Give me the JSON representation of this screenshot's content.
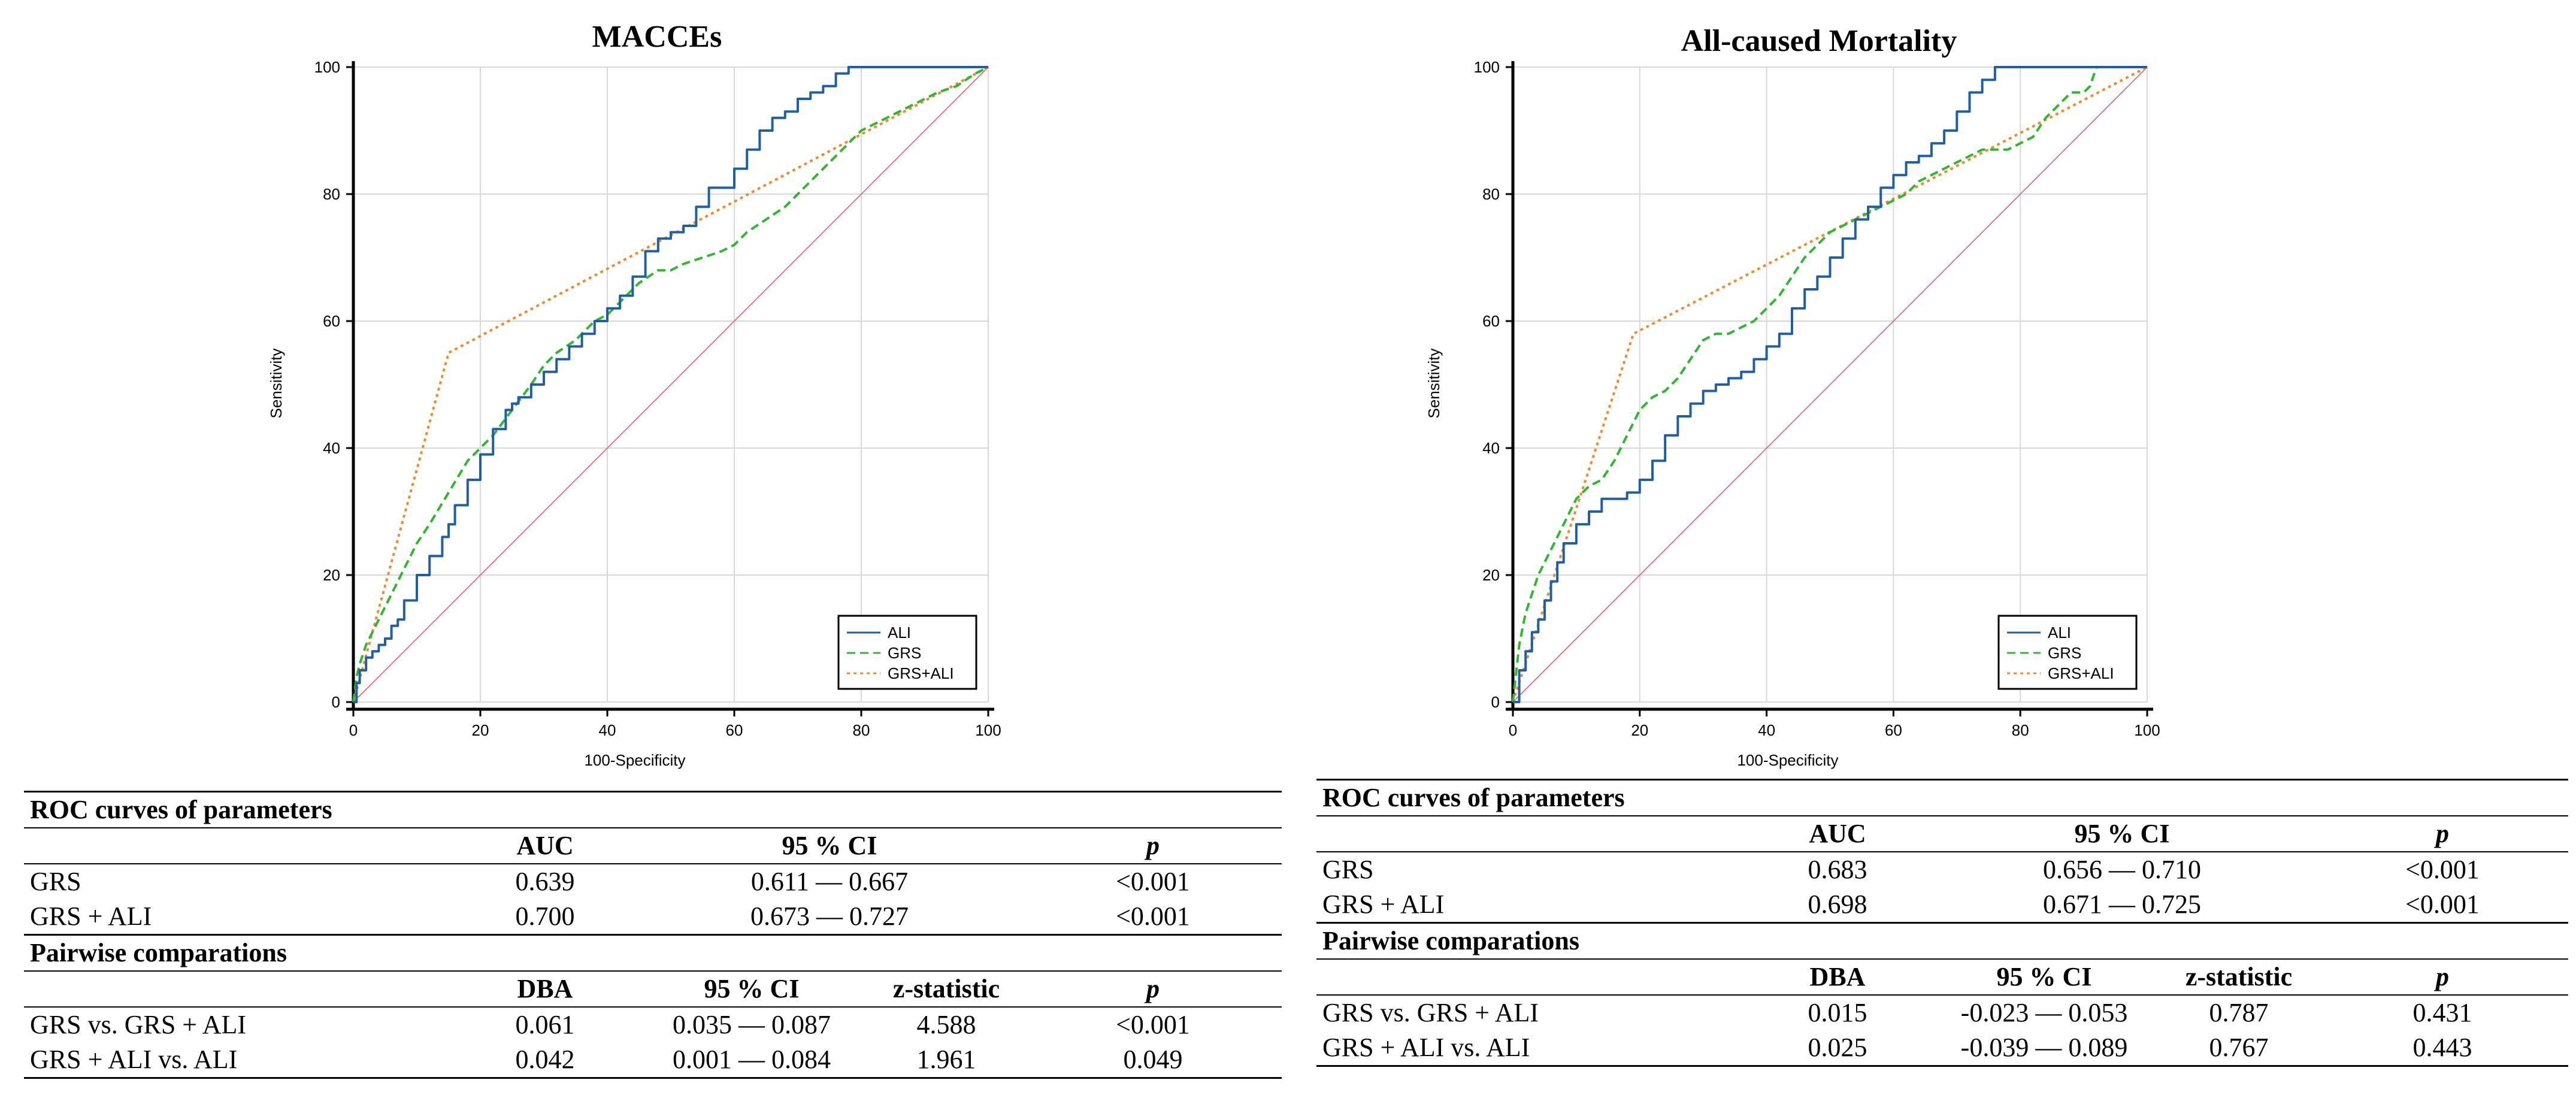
{
  "panels": [
    {
      "id": "left",
      "chart": {
        "title": "MACCEs",
        "xlabel": "100-Specificity",
        "ylabel": "Sensitivity",
        "xticks": [
          "0",
          "20",
          "40",
          "60",
          "80",
          "100"
        ],
        "yticks": [
          "0",
          "20",
          "40",
          "60",
          "80",
          "100"
        ],
        "legend": [
          "ALI",
          "GRS",
          "GRS+ALI"
        ]
      },
      "table": {
        "roc_title": "ROC curves of parameters",
        "roc_headers": [
          "AUC",
          "95 % CI",
          "p"
        ],
        "roc_rows": [
          {
            "name": "GRS",
            "auc": "0.639",
            "ci": "0.611 — 0.667",
            "p": "<0.001"
          },
          {
            "name": "GRS + ALI",
            "auc": "0.700",
            "ci": "0.673 — 0.727",
            "p": "<0.001"
          }
        ],
        "pair_title": "Pairwise comparations",
        "pair_headers": [
          "DBA",
          "95 % CI",
          "z-statistic",
          "p"
        ],
        "pair_rows": [
          {
            "name": "GRS vs. GRS + ALI",
            "dba": "0.061",
            "ci": "0.035 — 0.087",
            "z": "4.588",
            "p": "<0.001"
          },
          {
            "name": "GRS + ALI vs. ALI",
            "dba": "0.042",
            "ci": "0.001 — 0.084",
            "z": "1.961",
            "p": "0.049"
          }
        ]
      }
    },
    {
      "id": "right",
      "chart": {
        "title": "All-caused Mortality",
        "xlabel": "100-Specificity",
        "ylabel": "Sensitivity",
        "xticks": [
          "0",
          "20",
          "40",
          "60",
          "80",
          "100"
        ],
        "yticks": [
          "0",
          "20",
          "40",
          "60",
          "80",
          "100"
        ],
        "legend": [
          "ALI",
          "GRS",
          "GRS+ALI"
        ]
      },
      "table": {
        "roc_title": "ROC curves of parameters",
        "roc_headers": [
          "AUC",
          "95 % CI",
          "p"
        ],
        "roc_rows": [
          {
            "name": "GRS",
            "auc": "0.683",
            "ci": "0.656 — 0.710",
            "p": "<0.001"
          },
          {
            "name": "GRS + ALI",
            "auc": "0.698",
            "ci": "0.671 — 0.725",
            "p": "<0.001"
          }
        ],
        "pair_title": "Pairwise comparations",
        "pair_headers": [
          "DBA",
          "95 % CI",
          "z-statistic",
          "p"
        ],
        "pair_rows": [
          {
            "name": "GRS vs. GRS + ALI",
            "dba": "0.015",
            "ci": "-0.023 — 0.053",
            "z": "0.787",
            "p": "0.431"
          },
          {
            "name": "GRS + ALI vs. ALI",
            "dba": "0.025",
            "ci": "-0.039 — 0.089",
            "z": "0.767",
            "p": "0.443"
          }
        ]
      }
    }
  ],
  "chart_data": [
    {
      "type": "line",
      "title": "MACCEs",
      "xlabel": "100-Specificity",
      "ylabel": "Sensitivity",
      "xlim": [
        0,
        100
      ],
      "ylim": [
        0,
        100
      ],
      "grid": true,
      "legend_position": "bottom-right",
      "colors": {
        "ALI": "#1f5fa8",
        "GRS": "#2db82d",
        "GRS+ALI": "#f08a2c",
        "reference": "#e06070"
      },
      "series": [
        {
          "name": "ALI",
          "style": "solid",
          "x": [
            0,
            0.5,
            1,
            2,
            3,
            4,
            5,
            6,
            7,
            8,
            10,
            12,
            14,
            15,
            16,
            18,
            20,
            22,
            24,
            25,
            26,
            28,
            30,
            32,
            34,
            36,
            38,
            40,
            42,
            44,
            46,
            48,
            50,
            52,
            54,
            56,
            58,
            60,
            62,
            64,
            66,
            68,
            70,
            72,
            74,
            76,
            78,
            80,
            82,
            84,
            86,
            88,
            90,
            92,
            94,
            96,
            98,
            100
          ],
          "y": [
            0,
            3,
            5,
            7,
            8,
            9,
            10,
            12,
            13,
            16,
            20,
            23,
            26,
            28,
            31,
            35,
            39,
            43,
            46,
            47,
            48,
            50,
            52,
            54,
            56,
            58,
            60,
            62,
            64,
            67,
            71,
            73,
            74,
            75,
            78,
            81,
            81,
            84,
            87,
            90,
            92,
            93,
            95,
            96,
            97,
            99,
            100,
            100,
            100,
            100,
            100,
            100,
            100,
            100,
            100,
            100,
            100,
            100
          ]
        },
        {
          "name": "GRS",
          "style": "dashed",
          "x": [
            0,
            0.5,
            1,
            2,
            4,
            6,
            8,
            10,
            12,
            15,
            18,
            20,
            22,
            25,
            28,
            30,
            32,
            35,
            38,
            40,
            42,
            45,
            48,
            50,
            52,
            55,
            58,
            60,
            62,
            65,
            68,
            70,
            72,
            75,
            78,
            80,
            82,
            84,
            86,
            88,
            90,
            92,
            95,
            98,
            100
          ],
          "y": [
            0,
            4,
            6,
            9,
            13,
            17,
            21,
            25,
            28,
            33,
            38,
            40,
            42,
            46,
            50,
            53,
            55,
            57,
            60,
            61,
            63,
            66,
            68,
            68,
            69,
            70,
            71,
            72,
            74,
            76,
            78,
            80,
            82,
            85,
            88,
            90,
            91,
            92,
            93,
            94,
            95,
            96,
            97,
            99,
            100
          ]
        },
        {
          "name": "GRS+ALI",
          "style": "dotted",
          "x": [
            0,
            15,
            100
          ],
          "y": [
            0,
            55,
            100
          ]
        },
        {
          "name": "reference",
          "style": "thin",
          "x": [
            0,
            100
          ],
          "y": [
            0,
            100
          ]
        }
      ],
      "legend": [
        "ALI",
        "GRS",
        "GRS+ALI"
      ]
    },
    {
      "type": "line",
      "title": "All-caused Mortality",
      "xlabel": "100-Specificity",
      "ylabel": "Sensitivity",
      "xlim": [
        0,
        100
      ],
      "ylim": [
        0,
        100
      ],
      "grid": true,
      "legend_position": "bottom-right",
      "colors": {
        "ALI": "#1f5fa8",
        "GRS": "#2db82d",
        "GRS+ALI": "#f08a2c",
        "reference": "#e06070"
      },
      "series": [
        {
          "name": "ALI",
          "style": "solid",
          "x": [
            0,
            1,
            2,
            3,
            4,
            5,
            6,
            7,
            8,
            10,
            12,
            14,
            16,
            18,
            20,
            22,
            24,
            26,
            28,
            30,
            32,
            34,
            36,
            38,
            40,
            42,
            44,
            46,
            48,
            50,
            52,
            54,
            56,
            58,
            60,
            62,
            64,
            66,
            68,
            70,
            72,
            74,
            76,
            80,
            85,
            90,
            95,
            100
          ],
          "y": [
            0,
            5,
            8,
            11,
            13,
            16,
            19,
            22,
            25,
            28,
            30,
            32,
            32,
            33,
            35,
            38,
            42,
            45,
            47,
            49,
            50,
            51,
            52,
            54,
            56,
            58,
            62,
            65,
            67,
            70,
            73,
            76,
            78,
            81,
            83,
            85,
            86,
            88,
            90,
            93,
            96,
            98,
            100,
            100,
            100,
            100,
            100,
            100
          ]
        },
        {
          "name": "GRS",
          "style": "dashed",
          "x": [
            0,
            1,
            2,
            3,
            4,
            5,
            6,
            8,
            10,
            12,
            14,
            16,
            18,
            20,
            22,
            24,
            26,
            28,
            30,
            32,
            34,
            36,
            38,
            40,
            42,
            44,
            46,
            48,
            50,
            52,
            54,
            56,
            58,
            60,
            62,
            64,
            66,
            68,
            70,
            72,
            74,
            76,
            78,
            80,
            82,
            84,
            86,
            88,
            90,
            91,
            92,
            95,
            100
          ],
          "y": [
            0,
            9,
            14,
            17,
            20,
            22,
            24,
            28,
            32,
            34,
            35,
            38,
            42,
            46,
            48,
            49,
            51,
            54,
            57,
            58,
            58,
            59,
            60,
            62,
            64,
            67,
            70,
            72,
            74,
            75,
            76,
            77,
            78,
            79,
            80,
            82,
            83,
            84,
            85,
            86,
            87,
            87,
            87,
            88,
            89,
            92,
            94,
            96,
            96,
            97,
            100,
            100,
            100
          ]
        },
        {
          "name": "GRS+ALI",
          "style": "dotted",
          "x": [
            0,
            19,
            100
          ],
          "y": [
            0,
            58,
            100
          ]
        },
        {
          "name": "reference",
          "style": "thin",
          "x": [
            0,
            100
          ],
          "y": [
            0,
            100
          ]
        }
      ],
      "legend": [
        "ALI",
        "GRS",
        "GRS+ALI"
      ]
    }
  ]
}
